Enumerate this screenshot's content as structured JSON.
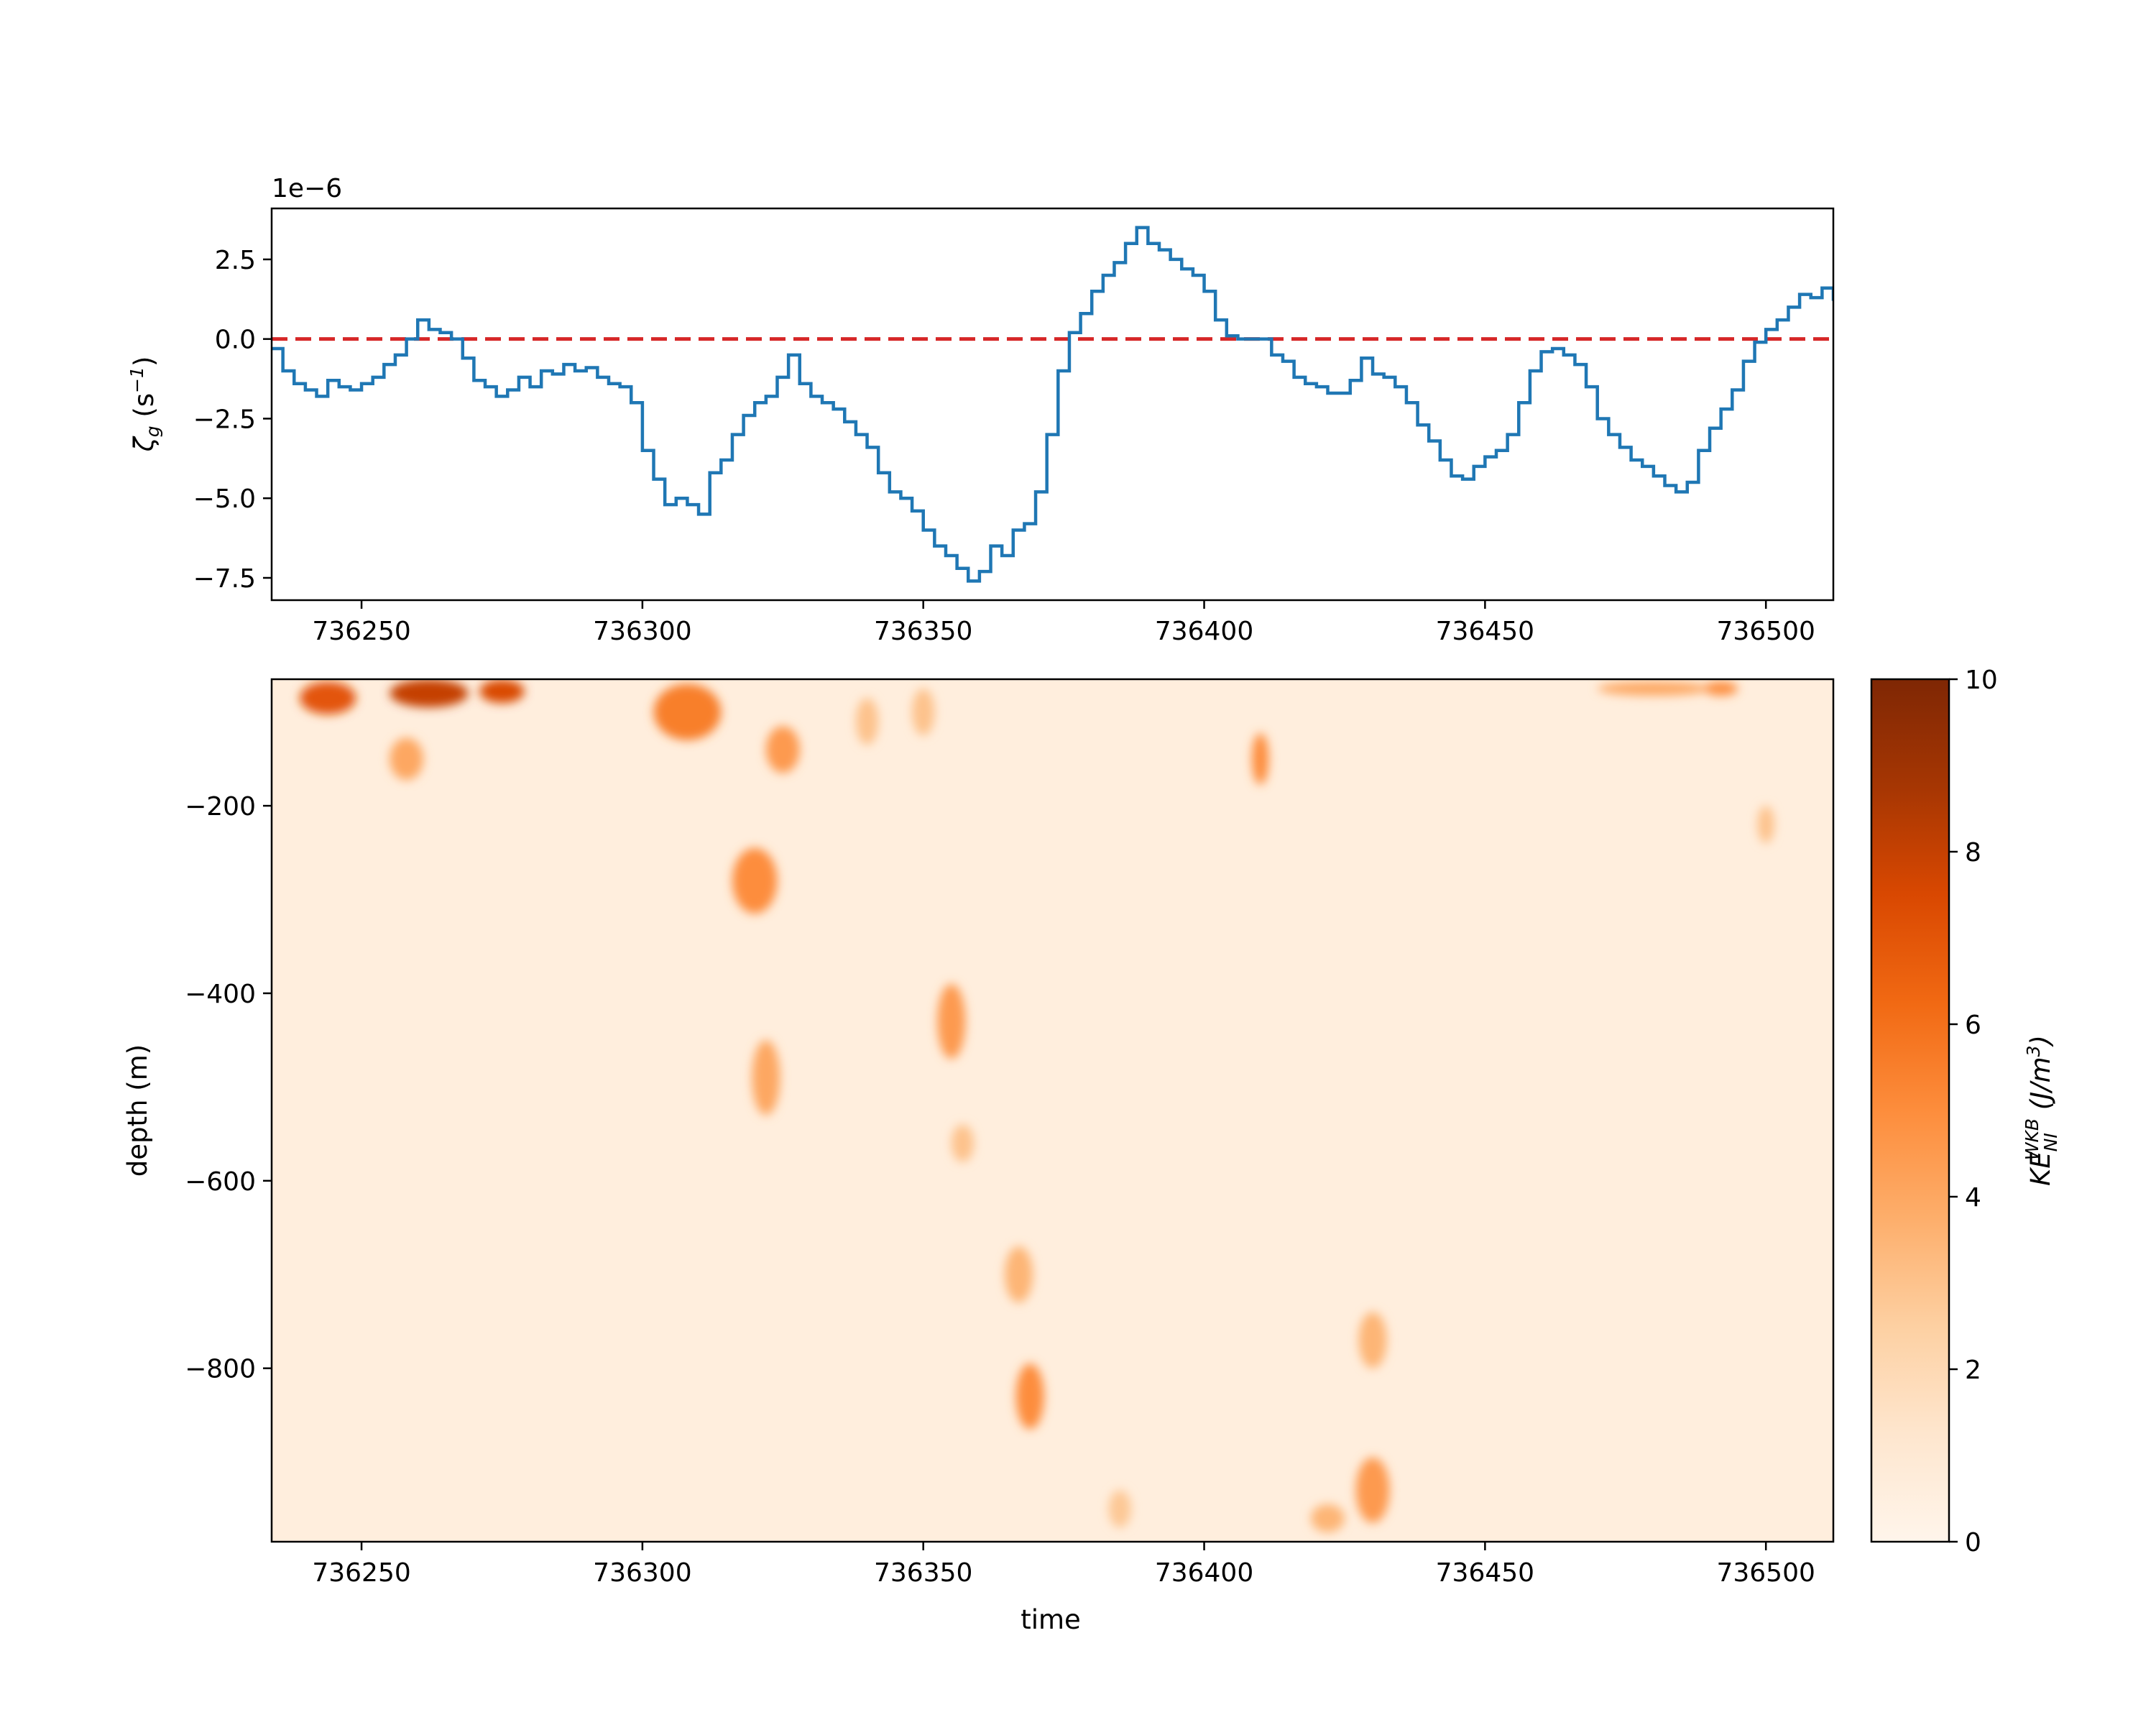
{
  "chart_data": [
    {
      "type": "line",
      "drawstyle": "steps",
      "ylabel": "ζ_g (s⁻¹)",
      "ylabel_parts": {
        "sym": "ζ",
        "sub": "g",
        "unit_open": " (s",
        "unit_sup": "−1",
        "unit_close": ")"
      },
      "offset_text": "1e−6",
      "xlim": [
        736234,
        736512
      ],
      "ylim": [
        -8.2,
        4.1
      ],
      "xticks": [
        736250,
        736300,
        736350,
        736400,
        736450,
        736500
      ],
      "xtick_labels": [
        "736250",
        "736300",
        "736350",
        "736400",
        "736450",
        "736500"
      ],
      "yticks": [
        2.5,
        0.0,
        -2.5,
        -5.0,
        -7.5
      ],
      "ytick_labels": [
        "2.5",
        "0.0",
        "−2.5",
        "−5.0",
        "−7.5"
      ],
      "grid": false,
      "reference_line": {
        "y": 0.0,
        "style": "dashed",
        "color": "#d62728"
      },
      "series": [
        {
          "color": "#1f77b4",
          "x": [
            736234,
            736236,
            736238,
            736240,
            736242,
            736244,
            736246,
            736248,
            736250,
            736252,
            736254,
            736256,
            736258,
            736260,
            736262,
            736264,
            736266,
            736268,
            736270,
            736272,
            736274,
            736276,
            736278,
            736280,
            736282,
            736284,
            736286,
            736288,
            736290,
            736292,
            736294,
            736296,
            736298,
            736300,
            736302,
            736304,
            736306,
            736308,
            736310,
            736312,
            736314,
            736316,
            736318,
            736320,
            736322,
            736324,
            736326,
            736328,
            736330,
            736332,
            736334,
            736336,
            736338,
            736340,
            736342,
            736344,
            736346,
            736348,
            736350,
            736352,
            736354,
            736356,
            736358,
            736360,
            736362,
            736364,
            736366,
            736368,
            736370,
            736372,
            736374,
            736376,
            736378,
            736380,
            736382,
            736384,
            736386,
            736388,
            736390,
            736392,
            736394,
            736396,
            736398,
            736400,
            736402,
            736404,
            736406,
            736408,
            736410,
            736412,
            736414,
            736416,
            736418,
            736420,
            736422,
            736424,
            736426,
            736428,
            736430,
            736432,
            736434,
            736436,
            736438,
            736440,
            736442,
            736444,
            736446,
            736448,
            736450,
            736452,
            736454,
            736456,
            736458,
            736460,
            736462,
            736464,
            736466,
            736468,
            736470,
            736472,
            736474,
            736476,
            736478,
            736480,
            736482,
            736484,
            736486,
            736488,
            736490,
            736492,
            736494,
            736496,
            736498,
            736500,
            736502,
            736504,
            736506,
            736508,
            736510,
            736512
          ],
          "values": [
            -0.3,
            -1.0,
            -1.4,
            -1.6,
            -1.8,
            -1.3,
            -1.5,
            -1.6,
            -1.4,
            -1.2,
            -0.8,
            -0.5,
            0.0,
            0.6,
            0.3,
            0.2,
            0.0,
            -0.6,
            -1.3,
            -1.5,
            -1.8,
            -1.6,
            -1.2,
            -1.5,
            -1.0,
            -1.1,
            -0.8,
            -1.0,
            -0.9,
            -1.2,
            -1.4,
            -1.5,
            -2.0,
            -3.5,
            -4.4,
            -5.2,
            -5.0,
            -5.2,
            -5.5,
            -4.2,
            -3.8,
            -3.0,
            -2.4,
            -2.0,
            -1.8,
            -1.2,
            -0.5,
            -1.4,
            -1.8,
            -2.0,
            -2.2,
            -2.6,
            -3.0,
            -3.4,
            -4.2,
            -4.8,
            -5.0,
            -5.4,
            -6.0,
            -6.5,
            -6.8,
            -7.2,
            -7.6,
            -7.3,
            -6.5,
            -6.8,
            -6.0,
            -5.8,
            -4.8,
            -3.0,
            -1.0,
            0.2,
            0.8,
            1.5,
            2.0,
            2.4,
            3.0,
            3.5,
            3.0,
            2.8,
            2.5,
            2.2,
            2.0,
            1.5,
            0.6,
            0.1,
            0.0,
            0.0,
            0.0,
            -0.5,
            -0.7,
            -1.2,
            -1.4,
            -1.5,
            -1.7,
            -1.7,
            -1.3,
            -0.6,
            -1.1,
            -1.2,
            -1.5,
            -2.0,
            -2.7,
            -3.2,
            -3.8,
            -4.3,
            -4.4,
            -4.0,
            -3.7,
            -3.5,
            -3.0,
            -2.0,
            -1.0,
            -0.4,
            -0.3,
            -0.5,
            -0.8,
            -1.5,
            -2.5,
            -3.0,
            -3.4,
            -3.8,
            -4.0,
            -4.3,
            -4.6,
            -4.8,
            -4.5,
            -3.5,
            -2.8,
            -2.2,
            -1.6,
            -0.7,
            -0.1,
            0.3,
            0.6,
            1.0,
            1.4,
            1.3,
            1.6,
            1.2
          ]
        }
      ]
    },
    {
      "type": "heatmap",
      "xlabel": "time",
      "ylabel": "depth (m)",
      "xlim": [
        736234,
        736512
      ],
      "ylim": [
        -985,
        -65
      ],
      "xticks": [
        736250,
        736300,
        736350,
        736400,
        736450,
        736500
      ],
      "xtick_labels": [
        "736250",
        "736300",
        "736350",
        "736400",
        "736450",
        "736500"
      ],
      "yticks": [
        -200,
        -400,
        -600,
        -800
      ],
      "ytick_labels": [
        "−200",
        "−400",
        "−600",
        "−800"
      ],
      "colormap": "Oranges",
      "colormap_stops": [
        "#fff5eb",
        "#fee6ce",
        "#fdd0a2",
        "#fdae6b",
        "#fd8d3c",
        "#f16913",
        "#d94801",
        "#a63603",
        "#7f2704"
      ],
      "colorbar": {
        "label": "KE_NI^WKB (J/m³)",
        "label_parts": {
          "base": "KE",
          "sub": "NI",
          "sup": "WKB",
          "unit_open": " (J/m",
          "unit_sup": "3",
          "unit_close": ")"
        },
        "range": [
          0,
          10
        ],
        "ticks": [
          0,
          2,
          4,
          6,
          8,
          10
        ],
        "tick_labels": [
          "0",
          "2",
          "4",
          "6",
          "8",
          "10"
        ]
      },
      "features": [
        {
          "t": 736244,
          "depth": -85,
          "dt": 10,
          "dz": 35,
          "value": 7.0
        },
        {
          "t": 736262,
          "depth": -80,
          "dt": 14,
          "dz": 30,
          "value": 8.0
        },
        {
          "t": 736275,
          "depth": -78,
          "dt": 8,
          "dz": 25,
          "value": 7.5
        },
        {
          "t": 736258,
          "depth": -150,
          "dt": 6,
          "dz": 45,
          "value": 4.0
        },
        {
          "t": 736308,
          "depth": -100,
          "dt": 12,
          "dz": 60,
          "value": 5.5
        },
        {
          "t": 736325,
          "depth": -140,
          "dt": 6,
          "dz": 50,
          "value": 4.5
        },
        {
          "t": 736320,
          "depth": -280,
          "dt": 8,
          "dz": 70,
          "value": 5.0
        },
        {
          "t": 736322,
          "depth": -490,
          "dt": 5,
          "dz": 80,
          "value": 4.0
        },
        {
          "t": 736355,
          "depth": -430,
          "dt": 5,
          "dz": 80,
          "value": 4.5
        },
        {
          "t": 736357,
          "depth": -560,
          "dt": 4,
          "dz": 40,
          "value": 3.0
        },
        {
          "t": 736367,
          "depth": -700,
          "dt": 5,
          "dz": 60,
          "value": 3.5
        },
        {
          "t": 736369,
          "depth": -830,
          "dt": 5,
          "dz": 70,
          "value": 5.0
        },
        {
          "t": 736410,
          "depth": -150,
          "dt": 3,
          "dz": 55,
          "value": 5.0
        },
        {
          "t": 736430,
          "depth": -770,
          "dt": 5,
          "dz": 60,
          "value": 3.5
        },
        {
          "t": 736430,
          "depth": -930,
          "dt": 6,
          "dz": 70,
          "value": 4.5
        },
        {
          "t": 736422,
          "depth": -960,
          "dt": 6,
          "dz": 30,
          "value": 3.5
        },
        {
          "t": 736480,
          "depth": -75,
          "dt": 20,
          "dz": 15,
          "value": 4.0
        },
        {
          "t": 736492,
          "depth": -75,
          "dt": 6,
          "dz": 15,
          "value": 5.0
        },
        {
          "t": 736500,
          "depth": -220,
          "dt": 3,
          "dz": 40,
          "value": 3.0
        },
        {
          "t": 736385,
          "depth": -950,
          "dt": 4,
          "dz": 40,
          "value": 2.8
        },
        {
          "t": 736340,
          "depth": -110,
          "dt": 4,
          "dz": 50,
          "value": 3.0
        },
        {
          "t": 736350,
          "depth": -100,
          "dt": 4,
          "dz": 50,
          "value": 3.0
        }
      ]
    }
  ]
}
